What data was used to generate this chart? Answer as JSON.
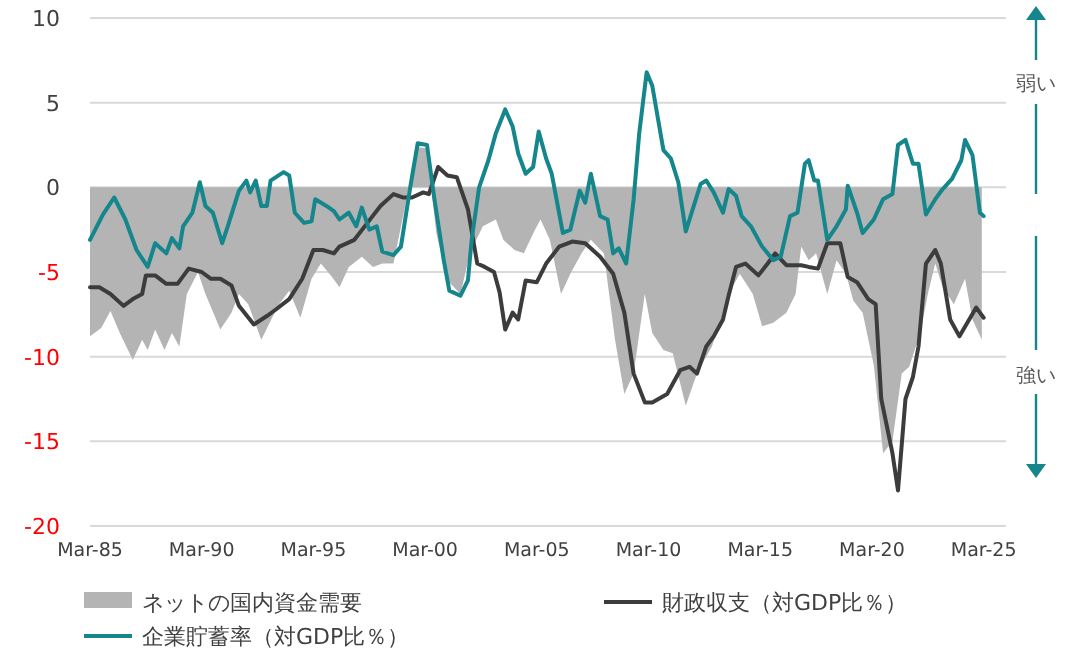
{
  "chart_data": {
    "type": "line",
    "xlim": [
      "1985-03",
      "2026-03"
    ],
    "ylim": [
      -20,
      10
    ],
    "xticks": [
      {
        "value": "1985-03",
        "label": "Mar-85"
      },
      {
        "value": "1990-03",
        "label": "Mar-90"
      },
      {
        "value": "1995-03",
        "label": "Mar-95"
      },
      {
        "value": "2000-03",
        "label": "Mar-00"
      },
      {
        "value": "2005-03",
        "label": "Mar-05"
      },
      {
        "value": "2010-03",
        "label": "Mar-10"
      },
      {
        "value": "2015-03",
        "label": "Mar-15"
      },
      {
        "value": "2020-03",
        "label": "Mar-20"
      },
      {
        "value": "2025-03",
        "label": "Mar-25"
      }
    ],
    "yticks": [
      -20,
      -15,
      -10,
      -5,
      0,
      5,
      10
    ],
    "grid": "y",
    "legend": "bottom",
    "annotations": [
      "弱い",
      "強い"
    ],
    "series": [
      {
        "name": "ネットの国内資金需要",
        "type": "area",
        "color": "#b4b4b4",
        "x": [
          "1985-03",
          "1985-09",
          "1986-02",
          "1986-07",
          "1987-02",
          "1987-07",
          "1987-10",
          "1988-02",
          "1988-07",
          "1988-11",
          "1989-03",
          "1989-07",
          "1990-01",
          "1990-05",
          "1991-01",
          "1991-07",
          "1991-11",
          "1992-04",
          "1992-11",
          "1993-08",
          "1994-02",
          "1994-08",
          "1995-02",
          "1995-07",
          "1996-01",
          "1996-05",
          "1996-10",
          "1997-05",
          "1997-11",
          "1998-04",
          "1998-10",
          "1999-05",
          "1999-10",
          "2000-04",
          "2000-09",
          "2001-03",
          "2001-10",
          "2002-03",
          "2002-10",
          "2003-05",
          "2003-09",
          "2004-03",
          "2004-08",
          "2005-02",
          "2005-05",
          "2005-10",
          "2006-04",
          "2006-09",
          "2007-03",
          "2007-08",
          "2008-03",
          "2008-09",
          "2009-02",
          "2009-07",
          "2010-01",
          "2010-05",
          "2010-11",
          "2011-04",
          "2011-11",
          "2012-05",
          "2013-01",
          "2013-05",
          "2013-10",
          "2014-04",
          "2014-11",
          "2015-04",
          "2015-10",
          "2016-05",
          "2016-10",
          "2017-01",
          "2017-05",
          "2017-09",
          "2018-03",
          "2018-08",
          "2019-01",
          "2019-05",
          "2019-10",
          "2020-04",
          "2020-09",
          "2021-02",
          "2021-07",
          "2021-11",
          "2022-05",
          "2022-09",
          "2023-01",
          "2023-05",
          "2023-11",
          "2024-05",
          "2024-09",
          "2025-02"
        ],
        "values": [
          -8.8,
          -8.3,
          -7.3,
          -8.6,
          -10.2,
          -9.0,
          -9.6,
          -8.4,
          -9.6,
          -8.6,
          -9.4,
          -6.3,
          -5.0,
          -6.3,
          -8.4,
          -7.4,
          -6.3,
          -6.9,
          -9.0,
          -7.0,
          -6.1,
          -7.7,
          -5.4,
          -4.5,
          -5.3,
          -5.9,
          -4.7,
          -4.1,
          -4.7,
          -4.5,
          -4.5,
          -0.7,
          2.4,
          2.3,
          -2.7,
          -5.5,
          -6.3,
          -3.9,
          -2.3,
          -1.9,
          -3.1,
          -3.7,
          -3.9,
          -2.5,
          -1.9,
          -3.1,
          -6.3,
          -5.1,
          -3.9,
          -3.1,
          -3.9,
          -9.0,
          -12.2,
          -11.0,
          -6.3,
          -8.6,
          -9.6,
          -9.8,
          -12.9,
          -11.0,
          -9.4,
          -8.2,
          -6.3,
          -5.1,
          -6.3,
          -8.2,
          -8.0,
          -7.4,
          -6.3,
          -3.5,
          -4.3,
          -3.9,
          -6.3,
          -4.3,
          -5.1,
          -6.7,
          -7.4,
          -10.5,
          -15.7,
          -15.0,
          -11.0,
          -10.6,
          -8.6,
          -6.3,
          -4.5,
          -5.9,
          -6.9,
          -5.4,
          -7.8,
          -9.0
        ]
      },
      {
        "name": "財政収支（対GDP比％）",
        "type": "line",
        "color": "#3c3c3c",
        "x": [
          "1985-03",
          "1985-08",
          "1986-02",
          "1986-09",
          "1987-02",
          "1987-07",
          "1987-09",
          "1988-02",
          "1988-08",
          "1989-02",
          "1989-08",
          "1990-03",
          "1990-08",
          "1991-01",
          "1991-07",
          "1991-11",
          "1992-07",
          "1993-02",
          "1993-07",
          "1994-02",
          "1994-09",
          "1995-03",
          "1995-08",
          "1996-02",
          "1996-05",
          "1997-01",
          "1997-08",
          "1998-03",
          "1998-10",
          "1999-03",
          "1999-08",
          "2000-02",
          "2000-05",
          "2000-10",
          "2001-03",
          "2001-08",
          "2002-02",
          "2002-07",
          "2002-11",
          "2003-04",
          "2003-07",
          "2003-10",
          "2004-02",
          "2004-05",
          "2004-09",
          "2005-03",
          "2005-08",
          "2006-03",
          "2006-10",
          "2007-05",
          "2008-01",
          "2008-08",
          "2009-02",
          "2009-07",
          "2010-01",
          "2010-05",
          "2011-01",
          "2011-08",
          "2012-01",
          "2012-05",
          "2012-10",
          "2013-02",
          "2013-07",
          "2013-10",
          "2014-02",
          "2014-07",
          "2015-02",
          "2015-07",
          "2015-11",
          "2016-05",
          "2017-01",
          "2017-05",
          "2017-10",
          "2018-03",
          "2018-10",
          "2019-02",
          "2019-07",
          "2020-01",
          "2020-05",
          "2020-08",
          "2021-02",
          "2021-05",
          "2021-09",
          "2022-01",
          "2022-04",
          "2022-08",
          "2023-01",
          "2023-04",
          "2023-09",
          "2024-02",
          "2024-11",
          "2025-03"
        ],
        "values": [
          -5.9,
          -5.9,
          -6.3,
          -7.0,
          -6.6,
          -6.3,
          -5.2,
          -5.2,
          -5.7,
          -5.7,
          -4.8,
          -5.0,
          -5.4,
          -5.4,
          -5.8,
          -7.0,
          -8.1,
          -7.6,
          -7.2,
          -6.6,
          -5.4,
          -3.7,
          -3.7,
          -3.9,
          -3.5,
          -3.1,
          -2.1,
          -1.1,
          -0.4,
          -0.6,
          -0.6,
          -0.3,
          -0.4,
          1.2,
          0.7,
          0.6,
          -1.3,
          -4.5,
          -4.7,
          -5.0,
          -6.2,
          -8.4,
          -7.4,
          -7.8,
          -5.5,
          -5.6,
          -4.5,
          -3.5,
          -3.2,
          -3.3,
          -4.1,
          -5.1,
          -7.4,
          -11.0,
          -12.7,
          -12.7,
          -12.2,
          -10.8,
          -10.6,
          -11.0,
          -9.4,
          -8.8,
          -7.8,
          -6.4,
          -4.7,
          -4.5,
          -5.2,
          -4.5,
          -3.9,
          -4.6,
          -4.6,
          -4.7,
          -4.8,
          -3.3,
          -3.3,
          -5.3,
          -5.6,
          -6.6,
          -6.9,
          -12.5,
          -15.7,
          -17.9,
          -12.5,
          -11.2,
          -9.4,
          -4.5,
          -3.7,
          -4.5,
          -7.8,
          -8.8,
          -7.1,
          -7.7
        ]
      },
      {
        "name": "企業貯蓄率（対GDP比％）",
        "type": "line",
        "color": "#14868c",
        "x": [
          "1985-03",
          "1985-10",
          "1986-04",
          "1986-10",
          "1987-04",
          "1987-10",
          "1988-02",
          "1988-08",
          "1988-11",
          "1989-03",
          "1989-05",
          "1989-10",
          "1990-02",
          "1990-05",
          "1990-09",
          "1991-02",
          "1991-05",
          "1991-11",
          "1992-03",
          "1992-05",
          "1992-08",
          "1992-11",
          "1993-02",
          "1993-04",
          "1993-11",
          "1994-02",
          "1994-05",
          "1994-10",
          "1995-02",
          "1995-04",
          "1995-10",
          "1996-02",
          "1996-05",
          "1996-10",
          "1997-02",
          "1997-05",
          "1997-09",
          "1998-01",
          "1998-04",
          "1998-10",
          "1999-02",
          "1999-07",
          "1999-11",
          "2000-04",
          "2000-08",
          "2001-01",
          "2001-04",
          "2001-10",
          "2002-02",
          "2002-04",
          "2002-08",
          "2003-01",
          "2003-05",
          "2003-10",
          "2004-02",
          "2004-05",
          "2004-09",
          "2005-01",
          "2005-04",
          "2005-08",
          "2005-11",
          "2006-05",
          "2006-09",
          "2007-02",
          "2007-05",
          "2007-08",
          "2008-01",
          "2008-05",
          "2008-08",
          "2008-11",
          "2009-03",
          "2009-07",
          "2009-10",
          "2010-02",
          "2010-05",
          "2010-11",
          "2011-03",
          "2011-07",
          "2011-11",
          "2012-07",
          "2012-10",
          "2013-02",
          "2013-07",
          "2013-10",
          "2014-02",
          "2014-05",
          "2014-10",
          "2015-04",
          "2015-10",
          "2016-02",
          "2016-07",
          "2016-11",
          "2017-03",
          "2017-05",
          "2017-08",
          "2017-10",
          "2018-03",
          "2018-08",
          "2019-01",
          "2019-02",
          "2019-07",
          "2019-10",
          "2020-04",
          "2020-09",
          "2021-02",
          "2021-05",
          "2021-09",
          "2022-01",
          "2022-04",
          "2022-08",
          "2023-01",
          "2023-05",
          "2023-10",
          "2024-03",
          "2024-05",
          "2024-09",
          "2025-01",
          "2025-03"
        ],
        "values": [
          -3.1,
          -1.6,
          -0.6,
          -1.9,
          -3.7,
          -4.7,
          -3.3,
          -3.9,
          -3.0,
          -3.6,
          -2.3,
          -1.5,
          0.3,
          -1.1,
          -1.5,
          -3.3,
          -2.3,
          -0.2,
          0.4,
          -0.3,
          0.4,
          -1.1,
          -1.1,
          0.4,
          0.9,
          0.7,
          -1.5,
          -2.1,
          -2.0,
          -0.7,
          -1.1,
          -1.4,
          -1.9,
          -1.5,
          -2.3,
          -1.2,
          -2.5,
          -2.3,
          -3.8,
          -4.0,
          -3.5,
          0.0,
          2.6,
          2.5,
          -0.7,
          -4.3,
          -6.1,
          -6.4,
          -5.5,
          -3.1,
          0.0,
          1.6,
          3.2,
          4.6,
          3.6,
          2.0,
          0.8,
          1.2,
          3.3,
          1.7,
          0.8,
          -2.7,
          -2.5,
          -0.2,
          -0.9,
          0.8,
          -1.7,
          -1.9,
          -3.9,
          -3.6,
          -4.5,
          -0.7,
          3.2,
          6.8,
          6.0,
          2.2,
          1.7,
          0.3,
          -2.6,
          0.2,
          0.4,
          -0.3,
          -1.5,
          -0.1,
          -0.5,
          -1.7,
          -2.3,
          -3.5,
          -4.3,
          -4.1,
          -1.7,
          -1.5,
          1.4,
          1.6,
          0.4,
          0.4,
          -3.1,
          -2.3,
          -1.3,
          0.1,
          -1.5,
          -2.7,
          -1.9,
          -0.7,
          -0.4,
          2.5,
          2.8,
          1.4,
          1.4,
          -1.6,
          -0.7,
          -0.1,
          0.5,
          1.6,
          2.8,
          1.9,
          -1.5,
          -1.7
        ]
      }
    ]
  }
}
